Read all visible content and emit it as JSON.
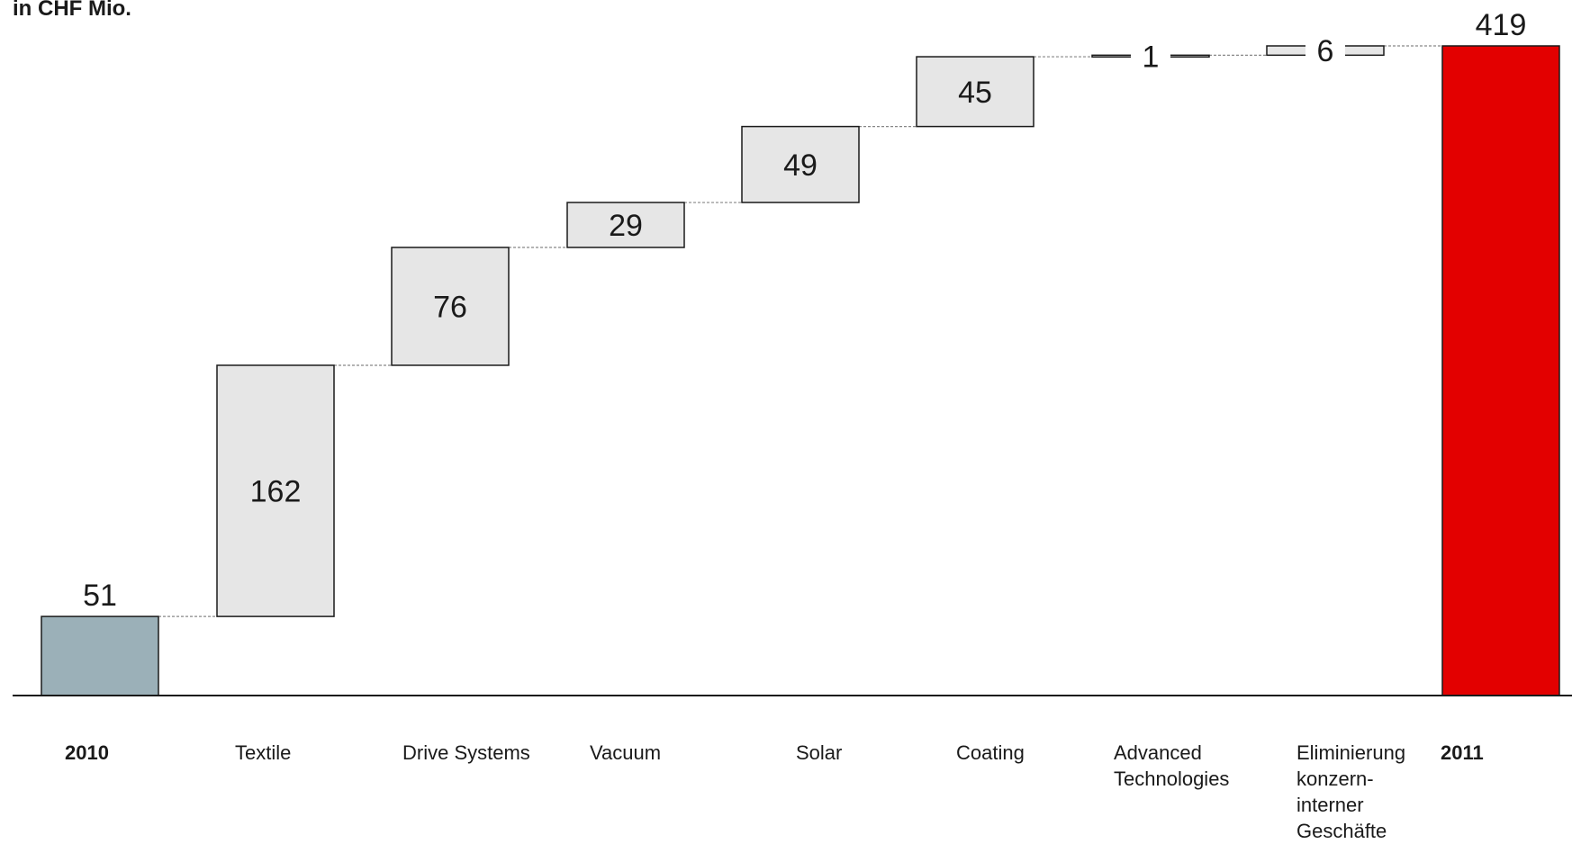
{
  "unit_label": "in CHF Mio.",
  "chart_data": {
    "type": "waterfall",
    "title": "",
    "unit": "in CHF Mio.",
    "ylim": [
      0,
      419
    ],
    "grid": false,
    "legend": "none",
    "categories": [
      "2010",
      "Textile",
      "Drive Systems",
      "Vacuum",
      "Solar",
      "Coating",
      "Advanced Technologies",
      "Eliminierung konzern-interner Geschäfte",
      "2011"
    ],
    "category_lines": [
      [
        "2010"
      ],
      [
        "Textile"
      ],
      [
        "Drive Systems"
      ],
      [
        "Vacuum"
      ],
      [
        "Solar"
      ],
      [
        "Coating"
      ],
      [
        "Advanced",
        "Technologies"
      ],
      [
        "Eliminierung",
        "konzern-",
        "interner",
        "Geschäfte"
      ],
      [
        "2011"
      ]
    ],
    "bold_categories": [
      "2010",
      "2011"
    ],
    "series": [
      {
        "kind": "total",
        "value": 51,
        "label": "51"
      },
      {
        "kind": "delta",
        "value": 162,
        "label": "162"
      },
      {
        "kind": "delta",
        "value": 76,
        "label": "76"
      },
      {
        "kind": "delta",
        "value": 29,
        "label": "29"
      },
      {
        "kind": "delta",
        "value": 49,
        "label": "49"
      },
      {
        "kind": "delta",
        "value": 45,
        "label": "45"
      },
      {
        "kind": "delta",
        "value": 1,
        "label": "1"
      },
      {
        "kind": "delta",
        "value": 6,
        "label": "6"
      },
      {
        "kind": "total",
        "value": 419,
        "label": "419"
      }
    ],
    "colors": {
      "start_total": "#9bb0b8",
      "delta": "#e6e6e6",
      "end_total": "#e30000",
      "stroke": "#1a1a1a",
      "connector": "#888888"
    }
  }
}
